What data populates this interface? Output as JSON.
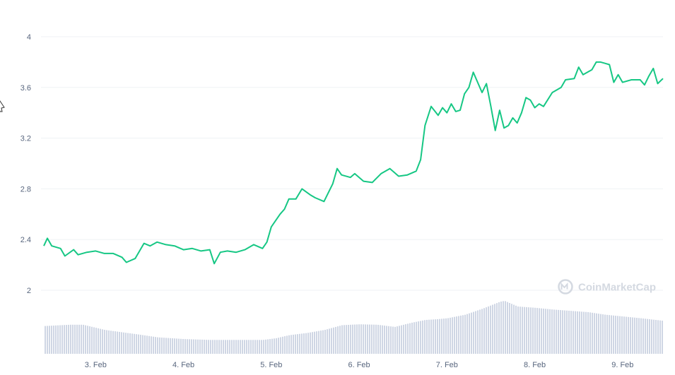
{
  "watermark": {
    "text": "CoinMarketCap"
  },
  "colors": {
    "price_line": "#16c784",
    "volume_bars": "#cfd6e4",
    "grid": "#eff2f5",
    "tick_text": "#58667e",
    "watermark": "#d4d9e1"
  },
  "chart_data": {
    "type": "line",
    "title": "",
    "xlabel": "",
    "ylabel": "",
    "grid": true,
    "legend": "none",
    "ylim": [
      2.0,
      4.0
    ],
    "yticks": [
      2,
      2.4,
      2.8,
      3.2,
      3.6,
      4
    ],
    "ytick_labels": [
      "2",
      "2.4",
      "2.8",
      "3.2",
      "3.6",
      "4"
    ],
    "xlim": [
      2.41,
      9.46
    ],
    "xticks": [
      3,
      4,
      5,
      6,
      7,
      8,
      9
    ],
    "xtick_labels": [
      "3. Feb",
      "4. Feb",
      "5. Feb",
      "6. Feb",
      "7. Feb",
      "8. Feb",
      "9. Feb"
    ],
    "series": [
      {
        "kind": "price",
        "x": [
          2.41,
          2.45,
          2.5,
          2.6,
          2.65,
          2.75,
          2.8,
          2.9,
          3.0,
          3.1,
          3.2,
          3.3,
          3.35,
          3.45,
          3.55,
          3.62,
          3.7,
          3.8,
          3.9,
          4.0,
          4.1,
          4.2,
          4.3,
          4.35,
          4.42,
          4.5,
          4.6,
          4.7,
          4.8,
          4.9,
          4.95,
          5.0,
          5.05,
          5.1,
          5.15,
          5.2,
          5.28,
          5.35,
          5.45,
          5.5,
          5.6,
          5.7,
          5.75,
          5.8,
          5.9,
          5.95,
          6.05,
          6.15,
          6.25,
          6.35,
          6.45,
          6.55,
          6.65,
          6.7,
          6.75,
          6.82,
          6.9,
          6.95,
          7.0,
          7.05,
          7.1,
          7.15,
          7.2,
          7.25,
          7.3,
          7.35,
          7.4,
          7.45,
          7.5,
          7.55,
          7.6,
          7.65,
          7.7,
          7.75,
          7.8,
          7.85,
          7.9,
          7.95,
          8.0,
          8.05,
          8.1,
          8.2,
          8.3,
          8.35,
          8.45,
          8.5,
          8.55,
          8.65,
          8.7,
          8.75,
          8.8,
          8.85,
          8.9,
          8.95,
          9.0,
          9.1,
          9.2,
          9.25,
          9.3,
          9.35,
          9.4,
          9.46
        ],
        "y": [
          2.35,
          2.41,
          2.35,
          2.33,
          2.27,
          2.32,
          2.28,
          2.3,
          2.31,
          2.29,
          2.29,
          2.26,
          2.22,
          2.25,
          2.37,
          2.35,
          2.38,
          2.36,
          2.35,
          2.32,
          2.33,
          2.31,
          2.32,
          2.21,
          2.3,
          2.31,
          2.3,
          2.32,
          2.36,
          2.33,
          2.38,
          2.5,
          2.55,
          2.6,
          2.64,
          2.72,
          2.72,
          2.8,
          2.75,
          2.73,
          2.7,
          2.84,
          2.96,
          2.91,
          2.89,
          2.92,
          2.86,
          2.85,
          2.92,
          2.96,
          2.9,
          2.91,
          2.94,
          3.03,
          3.3,
          3.45,
          3.38,
          3.44,
          3.4,
          3.47,
          3.41,
          3.42,
          3.55,
          3.6,
          3.72,
          3.64,
          3.56,
          3.63,
          3.45,
          3.26,
          3.42,
          3.28,
          3.3,
          3.36,
          3.32,
          3.4,
          3.52,
          3.5,
          3.44,
          3.47,
          3.45,
          3.56,
          3.6,
          3.66,
          3.67,
          3.76,
          3.7,
          3.74,
          3.8,
          3.8,
          3.79,
          3.78,
          3.64,
          3.7,
          3.64,
          3.66,
          3.66,
          3.62,
          3.69,
          3.75,
          3.63,
          3.67
        ]
      },
      {
        "kind": "volume",
        "relative": true,
        "x": [
          2.41,
          2.7,
          2.85,
          3.1,
          3.5,
          3.7,
          4.0,
          4.3,
          4.6,
          4.9,
          5.05,
          5.2,
          5.4,
          5.6,
          5.8,
          6.0,
          6.2,
          6.4,
          6.6,
          6.75,
          6.9,
          7.0,
          7.2,
          7.4,
          7.6,
          7.65,
          7.8,
          8.0,
          8.2,
          8.4,
          8.6,
          8.8,
          9.0,
          9.2,
          9.46
        ],
        "y": [
          0.64,
          0.67,
          0.67,
          0.55,
          0.44,
          0.38,
          0.34,
          0.32,
          0.32,
          0.32,
          0.36,
          0.43,
          0.48,
          0.55,
          0.66,
          0.68,
          0.67,
          0.62,
          0.72,
          0.78,
          0.8,
          0.82,
          0.9,
          1.04,
          1.2,
          1.22,
          1.09,
          1.06,
          1.02,
          0.99,
          0.96,
          0.9,
          0.86,
          0.82,
          0.76
        ]
      }
    ]
  }
}
